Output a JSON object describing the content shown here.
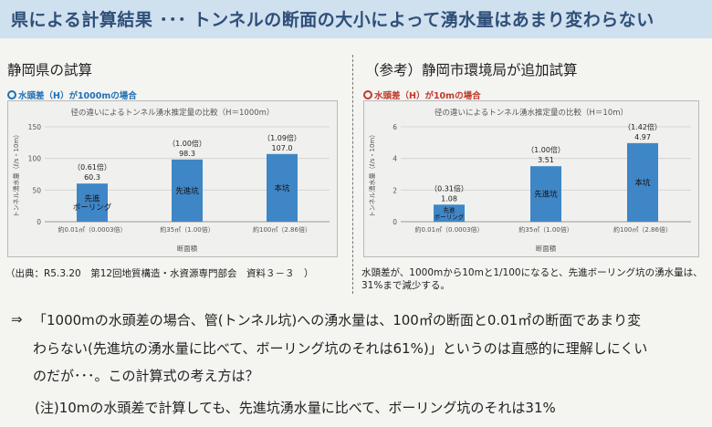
{
  "header": {
    "title": "県による計算結果 ･･･ トンネルの断面の大小によって湧水量はあまり変わらない",
    "bg_color": "#cfe0ef",
    "title_color": "#2f4f78"
  },
  "left_panel": {
    "heading": "静岡県の試算",
    "condition": "水頭差（H）が1000mの場合",
    "condition_color": "#1f6fb6",
    "source": "（出典：R5.3.20　第12回地質構造・水資源専門部会　資料３－３　）"
  },
  "right_panel": {
    "heading": "（参考）静岡市環境局が追加試算",
    "condition": "水頭差（H）が10mの場合",
    "condition_color": "#c0392b",
    "note": "水頭差が、1000mから10mと1/100になると、先進ボーリング坑の湧水量は、31%まで減少する。"
  },
  "body": {
    "arrow": "⇒",
    "main_lines": [
      "「1000mの水頭差の場合、管(トンネル坑)への湧水量は、100㎡の断面と0.01㎡の断面であまり変",
      "わらない(先進坑の湧水量に比べて、ボーリング坑のそれは61%)」というのは直感的に理解しにくい",
      "のだが･･･。この計算式の考え方は？"
    ],
    "footnote": "(注)10mの水頭差で計算しても、先進坑湧水量に比べて、ボーリング坑のそれは31%"
  },
  "chart_data": [
    {
      "type": "bar",
      "title": "径の違いによるトンネル湧水推定量の比較（H＝1000m）",
      "ylabel": "トンネル湧水量（ℓ/s・10m）",
      "xlabel": "断面積",
      "ylim": [
        0,
        150
      ],
      "yticks": [
        0,
        50,
        100,
        150
      ],
      "categories": [
        "約0.01㎡（0.0003倍）",
        "約35㎡（1.00倍）",
        "約100㎡（2.86倍）"
      ],
      "values": [
        60.3,
        98.3,
        107.0
      ],
      "value_labels": [
        "60.3",
        "98.3",
        "107.0"
      ],
      "ratio_labels": [
        "（0.61倍）",
        "（1.00倍）",
        "（1.09倍）"
      ],
      "bar_labels": [
        "先進\nボーリング",
        "先進坑",
        "本坑"
      ],
      "bar_color": "#3f86c6",
      "grid": true
    },
    {
      "type": "bar",
      "title": "径の違いによるトンネル湧水推定量の比較（H＝10m）",
      "ylabel": "トンネル湧水量（ℓ/s・10m）",
      "xlabel": "断面積",
      "ylim": [
        0,
        6
      ],
      "yticks": [
        0,
        2,
        4,
        6
      ],
      "categories": [
        "約0.01㎡（0.0003倍）",
        "約35㎡（1.00倍）",
        "約100㎡（2.86倍）"
      ],
      "values": [
        1.08,
        3.51,
        4.97
      ],
      "value_labels": [
        "1.08",
        "3.51",
        "4.97"
      ],
      "ratio_labels": [
        "（0.31倍）",
        "（1.00倍）",
        "（1.42倍）"
      ],
      "bar_labels": [
        "先進\nボーリング",
        "先進坑",
        "本坑"
      ],
      "bar_color": "#3f86c6",
      "grid": true
    }
  ]
}
